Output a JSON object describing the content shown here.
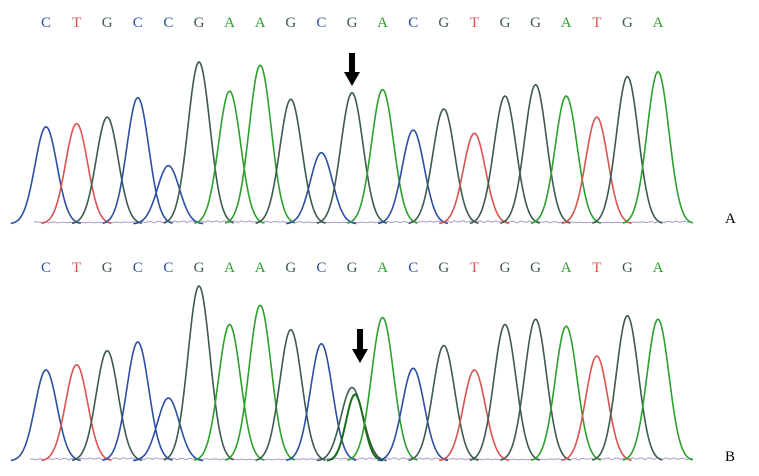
{
  "colors": {
    "A": "#2ca02c",
    "C": "#2b4fa3",
    "G": "#3d5a4e",
    "T": "#d9534f",
    "arrow": "#000000",
    "label": "#000000"
  },
  "panels": [
    {
      "label": "A",
      "sequence": [
        "C",
        "T",
        "G",
        "C",
        "C",
        "G",
        "A",
        "A",
        "G",
        "C",
        "G",
        "A",
        "C",
        "G",
        "T",
        "G",
        "G",
        "A",
        "T",
        "G",
        "A"
      ],
      "peak_heights": [
        0.6,
        0.62,
        0.66,
        0.78,
        0.36,
        1.0,
        0.82,
        0.98,
        0.77,
        0.44,
        0.81,
        0.83,
        0.58,
        0.71,
        0.56,
        0.79,
        0.86,
        0.79,
        0.66,
        0.91,
        0.94
      ],
      "marked_base_index": 10,
      "marked_base_has_secondary_peak": false
    },
    {
      "label": "B",
      "sequence": [
        "C",
        "T",
        "G",
        "C",
        "C",
        "G",
        "A",
        "A",
        "G",
        "C",
        "G",
        "A",
        "C",
        "G",
        "T",
        "G",
        "G",
        "A",
        "T",
        "G",
        "A"
      ],
      "peak_heights": [
        0.52,
        0.55,
        0.63,
        0.68,
        0.36,
        1.0,
        0.78,
        0.89,
        0.75,
        0.67,
        0.42,
        0.82,
        0.53,
        0.66,
        0.52,
        0.78,
        0.81,
        0.77,
        0.6,
        0.83,
        0.81
      ],
      "secondary_peak_heights": {
        "10": 0.38
      },
      "marked_base_index": 10,
      "marked_base_has_secondary_peak": true
    }
  ]
}
